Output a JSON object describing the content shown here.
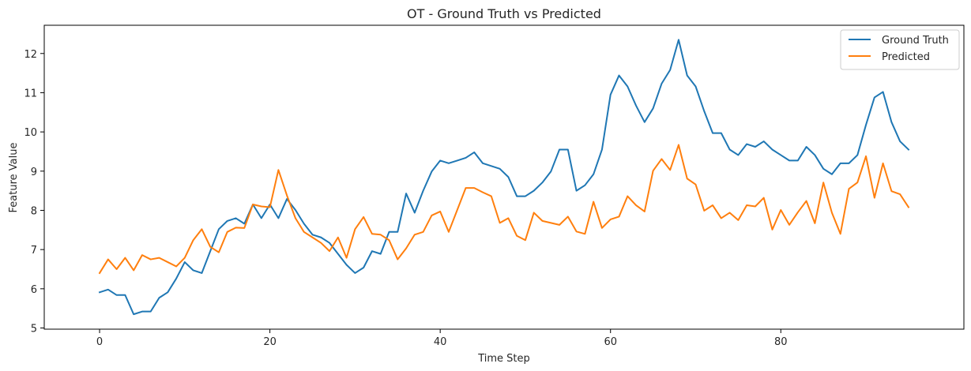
{
  "chart_data": {
    "type": "line",
    "title": "OT - Ground Truth vs Predicted",
    "xlabel": "Time Step",
    "ylabel": "Feature Value",
    "xlim": [
      -6.5,
      101.5
    ],
    "ylim": [
      4.97,
      12.72
    ],
    "xticks": [
      0,
      20,
      40,
      60,
      80
    ],
    "yticks": [
      5,
      6,
      7,
      8,
      9,
      10,
      11,
      12
    ],
    "grid": false,
    "legend_position": "top-right",
    "series": [
      {
        "name": "Ground Truth",
        "color": "#1f77b4",
        "values": [
          5.91,
          5.98,
          5.84,
          5.84,
          5.35,
          5.42,
          5.42,
          5.77,
          5.91,
          6.26,
          6.68,
          6.47,
          6.4,
          6.96,
          7.52,
          7.73,
          7.8,
          7.66,
          8.15,
          7.8,
          8.15,
          7.8,
          8.29,
          8.01,
          7.66,
          7.38,
          7.31,
          7.17,
          6.89,
          6.61,
          6.4,
          6.54,
          6.96,
          6.89,
          7.45,
          7.45,
          8.43,
          7.94,
          8.5,
          8.99,
          9.27,
          9.2,
          9.27,
          9.34,
          9.48,
          9.2,
          9.13,
          9.06,
          8.85,
          8.36,
          8.36,
          8.5,
          8.71,
          8.99,
          9.55,
          9.55,
          8.5,
          8.64,
          8.92,
          9.55,
          10.95,
          11.44,
          11.16,
          10.67,
          10.25,
          10.6,
          11.23,
          11.58,
          12.35,
          11.44,
          11.16,
          10.53,
          9.97,
          9.97,
          9.55,
          9.41,
          9.69,
          9.62,
          9.76,
          9.55,
          9.41,
          9.27,
          9.27,
          9.62,
          9.41,
          9.06,
          8.92,
          9.2,
          9.2,
          9.41,
          10.18,
          10.88,
          11.02,
          10.25,
          9.76,
          9.55
        ]
      },
      {
        "name": "Predicted",
        "color": "#ff7f0e",
        "values": [
          6.4,
          6.75,
          6.5,
          6.79,
          6.47,
          6.86,
          6.75,
          6.79,
          6.68,
          6.57,
          6.79,
          7.24,
          7.52,
          7.07,
          6.93,
          7.45,
          7.56,
          7.55,
          8.15,
          8.1,
          8.08,
          9.03,
          8.38,
          7.8,
          7.45,
          7.31,
          7.17,
          6.96,
          7.31,
          6.79,
          7.52,
          7.83,
          7.4,
          7.38,
          7.24,
          6.75,
          7.03,
          7.38,
          7.45,
          7.87,
          7.97,
          7.45,
          8.01,
          8.57,
          8.57,
          8.46,
          8.36,
          7.68,
          7.8,
          7.35,
          7.24,
          7.94,
          7.73,
          7.68,
          7.63,
          7.84,
          7.46,
          7.4,
          8.22,
          7.55,
          7.77,
          7.84,
          8.36,
          8.13,
          7.97,
          9.01,
          9.31,
          9.03,
          9.67,
          8.81,
          8.66,
          7.99,
          8.13,
          7.8,
          7.94,
          7.75,
          8.13,
          8.1,
          8.32,
          7.51,
          8.01,
          7.63,
          7.95,
          8.24,
          7.67,
          8.71,
          7.94,
          7.4,
          8.55,
          8.71,
          9.38,
          8.32,
          9.2,
          8.49,
          8.41,
          8.08
        ]
      }
    ]
  }
}
